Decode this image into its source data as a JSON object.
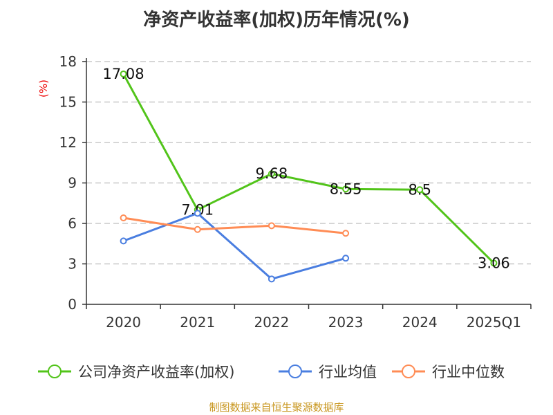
{
  "chart_data": {
    "type": "line",
    "title": "净资产收益率(加权)历年情况(%)",
    "ylabel": "(%)",
    "xlabel": "",
    "ylim": [
      0,
      18
    ],
    "yticks": [
      0,
      3,
      6,
      9,
      12,
      15,
      18
    ],
    "categories": [
      "2020",
      "2021",
      "2022",
      "2023",
      "2024",
      "2025Q1"
    ],
    "grid": true,
    "legend_position": "bottom",
    "series": [
      {
        "name": "公司净资产收益率(加权)",
        "color": "#52c41a",
        "values": [
          17.08,
          7.01,
          9.68,
          8.55,
          8.5,
          3.06
        ],
        "labels": [
          "17.08",
          "7.01",
          "9.68",
          "8.55",
          "8.5",
          "3.06"
        ]
      },
      {
        "name": "行业均值",
        "color": "#4a7ee0",
        "values": [
          4.7,
          6.75,
          1.88,
          3.42,
          null,
          null
        ]
      },
      {
        "name": "行业中位数",
        "color": "#ff8c55",
        "values": [
          6.41,
          5.55,
          5.83,
          5.27,
          null,
          null
        ]
      }
    ]
  },
  "source": "制图数据来自恒生聚源数据库"
}
